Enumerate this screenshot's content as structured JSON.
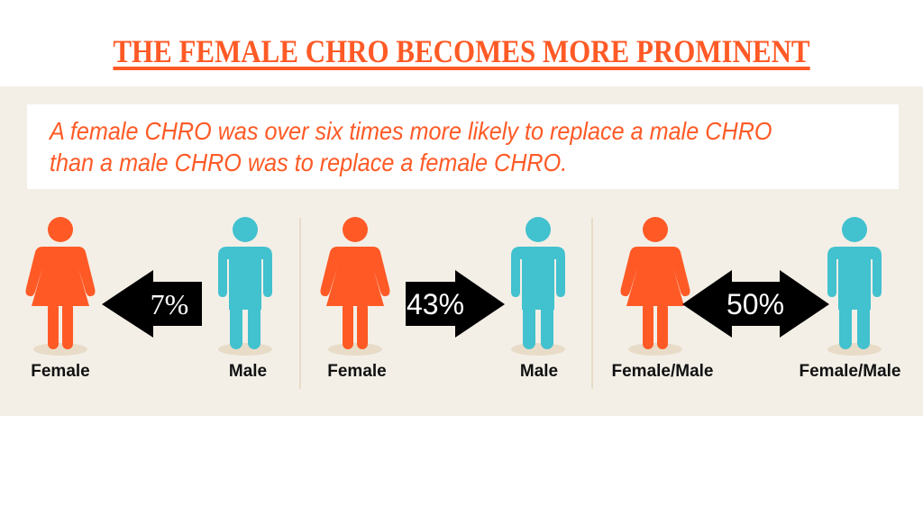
{
  "title": "THE FEMALE CHRO BECOMES MORE PROMINENT",
  "statement": {
    "line1": "A female CHRO was over six times more likely to replace a male CHRO",
    "line2": "than a male CHRO was to replace a female CHRO."
  },
  "colors": {
    "female": "#ff5a26",
    "male": "#42c1cf",
    "background": "#f3efe7",
    "arrow": "#000000"
  },
  "comparisons": [
    {
      "left_label": "Female",
      "right_label": "Male",
      "percent": "7%",
      "arrow_direction": "left"
    },
    {
      "left_label": "Female",
      "right_label": "Male",
      "percent": "43%",
      "arrow_direction": "right"
    },
    {
      "left_label": "Female/Male",
      "right_label": "Female/Male",
      "percent": "50%",
      "arrow_direction": "both"
    }
  ]
}
